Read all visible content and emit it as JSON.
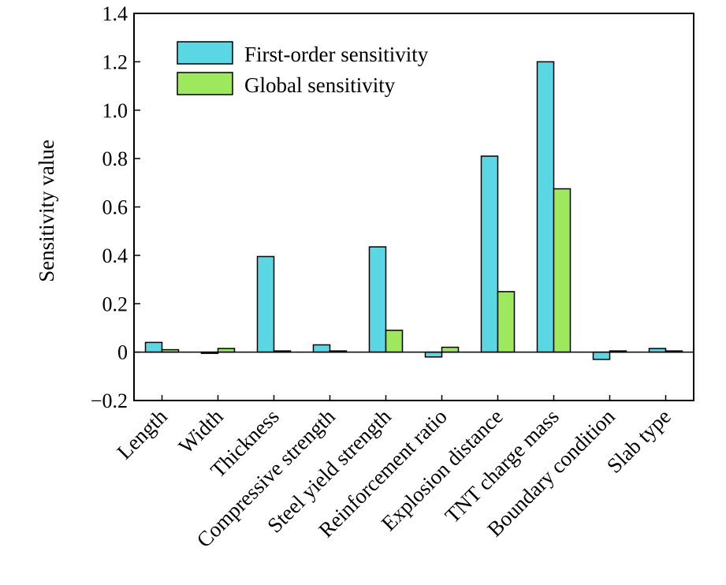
{
  "chart_data": {
    "type": "bar",
    "title": "",
    "xlabel": "",
    "ylabel": "Sensitivity value",
    "ylim": [
      -0.2,
      1.4
    ],
    "yticks": [
      -0.2,
      0,
      0.2,
      0.4,
      0.6,
      0.8,
      1.0,
      1.2,
      1.4
    ],
    "ytick_labels": [
      "−0.2",
      "0",
      "0.2",
      "0.4",
      "0.6",
      "0.8",
      "1.0",
      "1.2",
      "1.4"
    ],
    "categories": [
      "Length",
      "Width",
      "Thickness",
      "Compressive strength",
      "Steel yield strength",
      "Reinforcement ratio",
      "Explosion distance",
      "TNT charge mass",
      "Boundary condition",
      "Slab type"
    ],
    "series": [
      {
        "name": "First-order sensitivity",
        "color": "#5bd7e3",
        "values": [
          0.04,
          -0.005,
          0.395,
          0.03,
          0.435,
          -0.02,
          0.81,
          1.2,
          -0.03,
          0.015
        ]
      },
      {
        "name": "Global sensitivity",
        "color": "#9ee85e",
        "values": [
          0.01,
          0.015,
          0.0,
          0.0,
          0.09,
          0.02,
          0.25,
          0.675,
          0.0,
          0.0
        ]
      }
    ],
    "legend": "top-left",
    "grid": false
  }
}
